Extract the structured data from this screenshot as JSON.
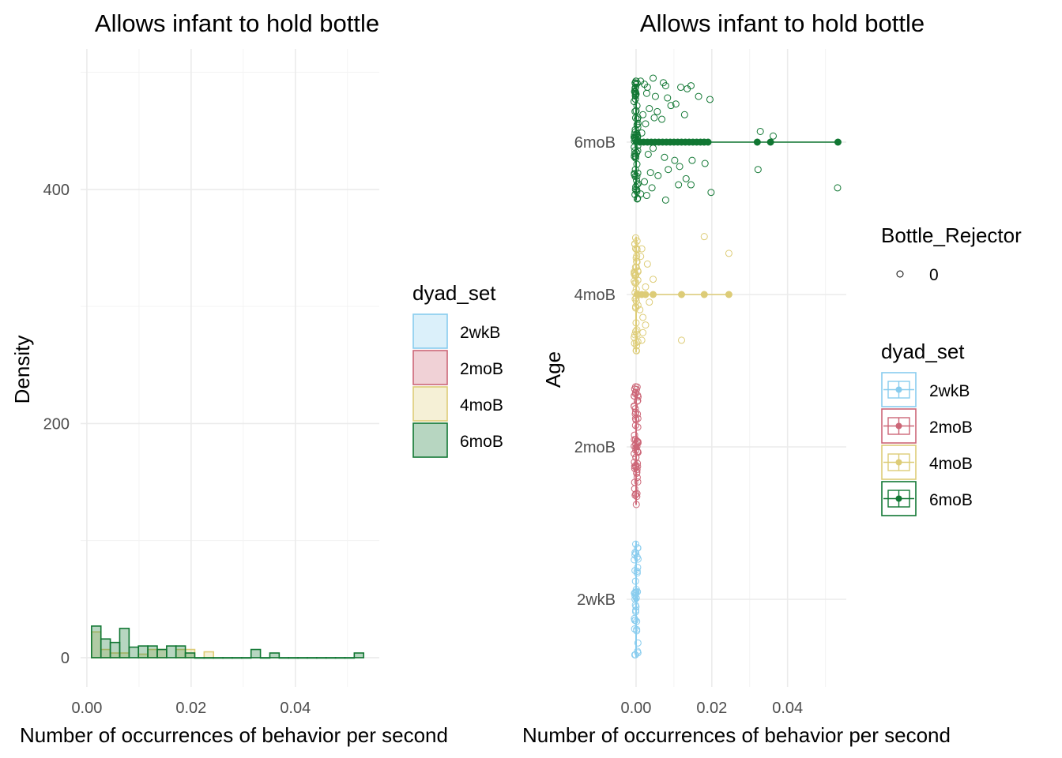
{
  "chart_data": [
    {
      "type": "bar",
      "subtype": "histogram",
      "title": "Allows infant to hold bottle",
      "xlabel": "Number of occurrences of behavior per second",
      "ylabel": "Density",
      "xlim": [
        -0.0012,
        0.0561
      ],
      "ylim": [
        -25,
        520
      ],
      "x_ticks": [
        0.0,
        0.02,
        0.04
      ],
      "x_tick_labels": [
        "0.00",
        "0.02",
        "0.04"
      ],
      "y_ticks": [
        0,
        200,
        400
      ],
      "y_tick_labels": [
        "0",
        "200",
        "400"
      ],
      "grid": true,
      "bin_width": 0.0018,
      "legend": {
        "title": "dyad_set",
        "position": "right",
        "entries": [
          "2wkB",
          "2moB",
          "4moB",
          "6moB"
        ]
      },
      "series": [
        {
          "name": "2moB",
          "color": "#cc6677",
          "bins": []
        },
        {
          "name": "4moB",
          "color": "#ddcc77",
          "bins": [
            {
              "x0": 0.0009,
              "density": 22
            },
            {
              "x0": 0.0027,
              "density": 7
            },
            {
              "x0": 0.0045,
              "density": 4
            },
            {
              "x0": 0.0063,
              "density": 4
            },
            {
              "x0": 0.0099,
              "density": 3
            },
            {
              "x0": 0.0117,
              "density": 7
            },
            {
              "x0": 0.0135,
              "density": 7
            },
            {
              "x0": 0.0171,
              "density": 7
            },
            {
              "x0": 0.0189,
              "density": 7
            },
            {
              "x0": 0.0225,
              "density": 5
            }
          ]
        },
        {
          "name": "6moB",
          "color": "#117733",
          "bins": [
            {
              "x0": 0.0009,
              "density": 27
            },
            {
              "x0": 0.0027,
              "density": 16
            },
            {
              "x0": 0.0045,
              "density": 13
            },
            {
              "x0": 0.0063,
              "density": 25
            },
            {
              "x0": 0.0081,
              "density": 9
            },
            {
              "x0": 0.0099,
              "density": 10
            },
            {
              "x0": 0.0117,
              "density": 10
            },
            {
              "x0": 0.0135,
              "density": 7
            },
            {
              "x0": 0.0153,
              "density": 10
            },
            {
              "x0": 0.0171,
              "density": 10
            },
            {
              "x0": 0.0189,
              "density": 4
            },
            {
              "x0": 0.0207,
              "density": 0
            },
            {
              "x0": 0.0225,
              "density": 0
            },
            {
              "x0": 0.0243,
              "density": 0
            },
            {
              "x0": 0.0261,
              "density": 0
            },
            {
              "x0": 0.0279,
              "density": 0
            },
            {
              "x0": 0.0297,
              "density": 0
            },
            {
              "x0": 0.0315,
              "density": 7
            },
            {
              "x0": 0.0333,
              "density": 0
            },
            {
              "x0": 0.0351,
              "density": 4
            },
            {
              "x0": 0.0369,
              "density": 0
            },
            {
              "x0": 0.0387,
              "density": 0
            },
            {
              "x0": 0.0405,
              "density": 0
            },
            {
              "x0": 0.0423,
              "density": 0
            },
            {
              "x0": 0.0441,
              "density": 0
            },
            {
              "x0": 0.0459,
              "density": 0
            },
            {
              "x0": 0.0477,
              "density": 0
            },
            {
              "x0": 0.0495,
              "density": 0
            },
            {
              "x0": 0.0513,
              "density": 4
            }
          ]
        }
      ]
    },
    {
      "type": "scatter",
      "subtype": "jittered points with horizontal boxplots",
      "title": "Allows infant to hold bottle",
      "xlabel": "Number of occurrences of behavior per second",
      "ylabel": "Age",
      "xlim": [
        -0.0025,
        0.0555
      ],
      "categories": [
        "2wkB",
        "2moB",
        "4moB",
        "6moB"
      ],
      "x_ticks": [
        0.0,
        0.02,
        0.04
      ],
      "x_tick_labels": [
        "0.00",
        "0.02",
        "0.04"
      ],
      "grid": true,
      "legend": [
        {
          "title": "Bottle_Rejector",
          "position": "right",
          "entries": [
            "0"
          ]
        },
        {
          "title": "dyad_set",
          "position": "right",
          "entries": [
            "2wkB",
            "2moB",
            "4moB",
            "6moB"
          ]
        }
      ],
      "series": [
        {
          "name": "2wkB",
          "color": "#88ccee",
          "box": {
            "min": 0,
            "q1": 0,
            "median": 0,
            "q3": 0,
            "max": 0
          },
          "outliers": [],
          "zero_count": 40,
          "nonzero_points": []
        },
        {
          "name": "2moB",
          "color": "#cc6677",
          "box": {
            "min": 0,
            "q1": 0,
            "median": 0,
            "q3": 0,
            "max": 0
          },
          "outliers": [],
          "zero_count": 60,
          "nonzero_points": []
        },
        {
          "name": "4moB",
          "color": "#ddcc77",
          "box": {
            "min": 0,
            "q1": 0,
            "median": 0,
            "q3": 0,
            "max": 0
          },
          "outliers": [
            0.0005,
            0.0015,
            0.0025,
            0.0045,
            0.012,
            0.018,
            0.0245
          ],
          "zero_count": 45,
          "nonzero_points": [
            {
              "x": 0.0005,
              "j": 0.15
            },
            {
              "x": 0.001,
              "j": -0.1
            },
            {
              "x": 0.0015,
              "j": 0.3
            },
            {
              "x": 0.0018,
              "j": -0.25
            },
            {
              "x": 0.0025,
              "j": 0.05
            },
            {
              "x": 0.003,
              "j": 0.2
            },
            {
              "x": 0.0035,
              "j": -0.05
            },
            {
              "x": 0.0018,
              "j": -0.15
            },
            {
              "x": 0.0012,
              "j": 0.25
            },
            {
              "x": 0.0045,
              "j": 0.1
            },
            {
              "x": 0.012,
              "j": -0.3
            },
            {
              "x": 0.018,
              "j": 0.38
            },
            {
              "x": 0.0245,
              "j": 0.27
            },
            {
              "x": 0.0015,
              "j": -0.3
            },
            {
              "x": 0.0025,
              "j": -0.2
            }
          ]
        },
        {
          "name": "6moB",
          "color": "#117733",
          "box": {
            "min": 0,
            "q1": 0,
            "median": 0,
            "q3": 0,
            "max": 0
          },
          "outliers": [
            0.001,
            0.002,
            0.003,
            0.004,
            0.005,
            0.006,
            0.007,
            0.008,
            0.009,
            0.01,
            0.011,
            0.012,
            0.013,
            0.014,
            0.015,
            0.016,
            0.017,
            0.018,
            0.019,
            0.032,
            0.0355,
            0.0533
          ],
          "zero_count": 70,
          "nonzero_points": [
            {
              "x": 0.0012,
              "j": 0.4
            },
            {
              "x": 0.0022,
              "j": 0.38
            },
            {
              "x": 0.003,
              "j": 0.36
            },
            {
              "x": 0.0045,
              "j": 0.42
            },
            {
              "x": 0.0072,
              "j": 0.39
            },
            {
              "x": 0.0078,
              "j": 0.37
            },
            {
              "x": 0.0145,
              "j": 0.37
            },
            {
              "x": 0.0135,
              "j": 0.35
            },
            {
              "x": 0.0118,
              "j": 0.36
            },
            {
              "x": 0.0028,
              "j": 0.32
            },
            {
              "x": 0.0051,
              "j": 0.3
            },
            {
              "x": 0.0083,
              "j": 0.29
            },
            {
              "x": 0.0105,
              "j": 0.25
            },
            {
              "x": 0.0165,
              "j": 0.3
            },
            {
              "x": 0.0195,
              "j": 0.28
            },
            {
              "x": 0.0035,
              "j": 0.22
            },
            {
              "x": 0.0056,
              "j": 0.2
            },
            {
              "x": 0.0092,
              "j": 0.24
            },
            {
              "x": 0.0018,
              "j": 0.18
            },
            {
              "x": 0.0025,
              "j": 0.12
            },
            {
              "x": 0.0048,
              "j": 0.16
            },
            {
              "x": 0.0068,
              "j": 0.15
            },
            {
              "x": 0.0128,
              "j": 0.18
            },
            {
              "x": 0.0015,
              "j": 0.06
            },
            {
              "x": 0.0045,
              "j": -0.04
            },
            {
              "x": 0.0032,
              "j": -0.08
            },
            {
              "x": 0.0075,
              "j": -0.1
            },
            {
              "x": 0.0102,
              "j": -0.12
            },
            {
              "x": 0.0115,
              "j": -0.16
            },
            {
              "x": 0.0148,
              "j": -0.12
            },
            {
              "x": 0.0182,
              "j": -0.14
            },
            {
              "x": 0.0322,
              "j": -0.18
            },
            {
              "x": 0.0328,
              "j": 0.07
            },
            {
              "x": 0.0362,
              "j": 0.04
            },
            {
              "x": 0.0038,
              "j": -0.2
            },
            {
              "x": 0.0058,
              "j": -0.22
            },
            {
              "x": 0.0085,
              "j": -0.18
            },
            {
              "x": 0.0132,
              "j": -0.24
            },
            {
              "x": 0.0145,
              "j": -0.28
            },
            {
              "x": 0.0112,
              "j": -0.28
            },
            {
              "x": 0.0022,
              "j": -0.26
            },
            {
              "x": 0.0042,
              "j": -0.3
            },
            {
              "x": 0.0198,
              "j": -0.33
            },
            {
              "x": 0.0078,
              "j": -0.38
            },
            {
              "x": 0.0532,
              "j": -0.3
            },
            {
              "x": 0.0012,
              "j": -0.34
            },
            {
              "x": 0.0028,
              "j": -0.35
            }
          ]
        }
      ]
    }
  ]
}
